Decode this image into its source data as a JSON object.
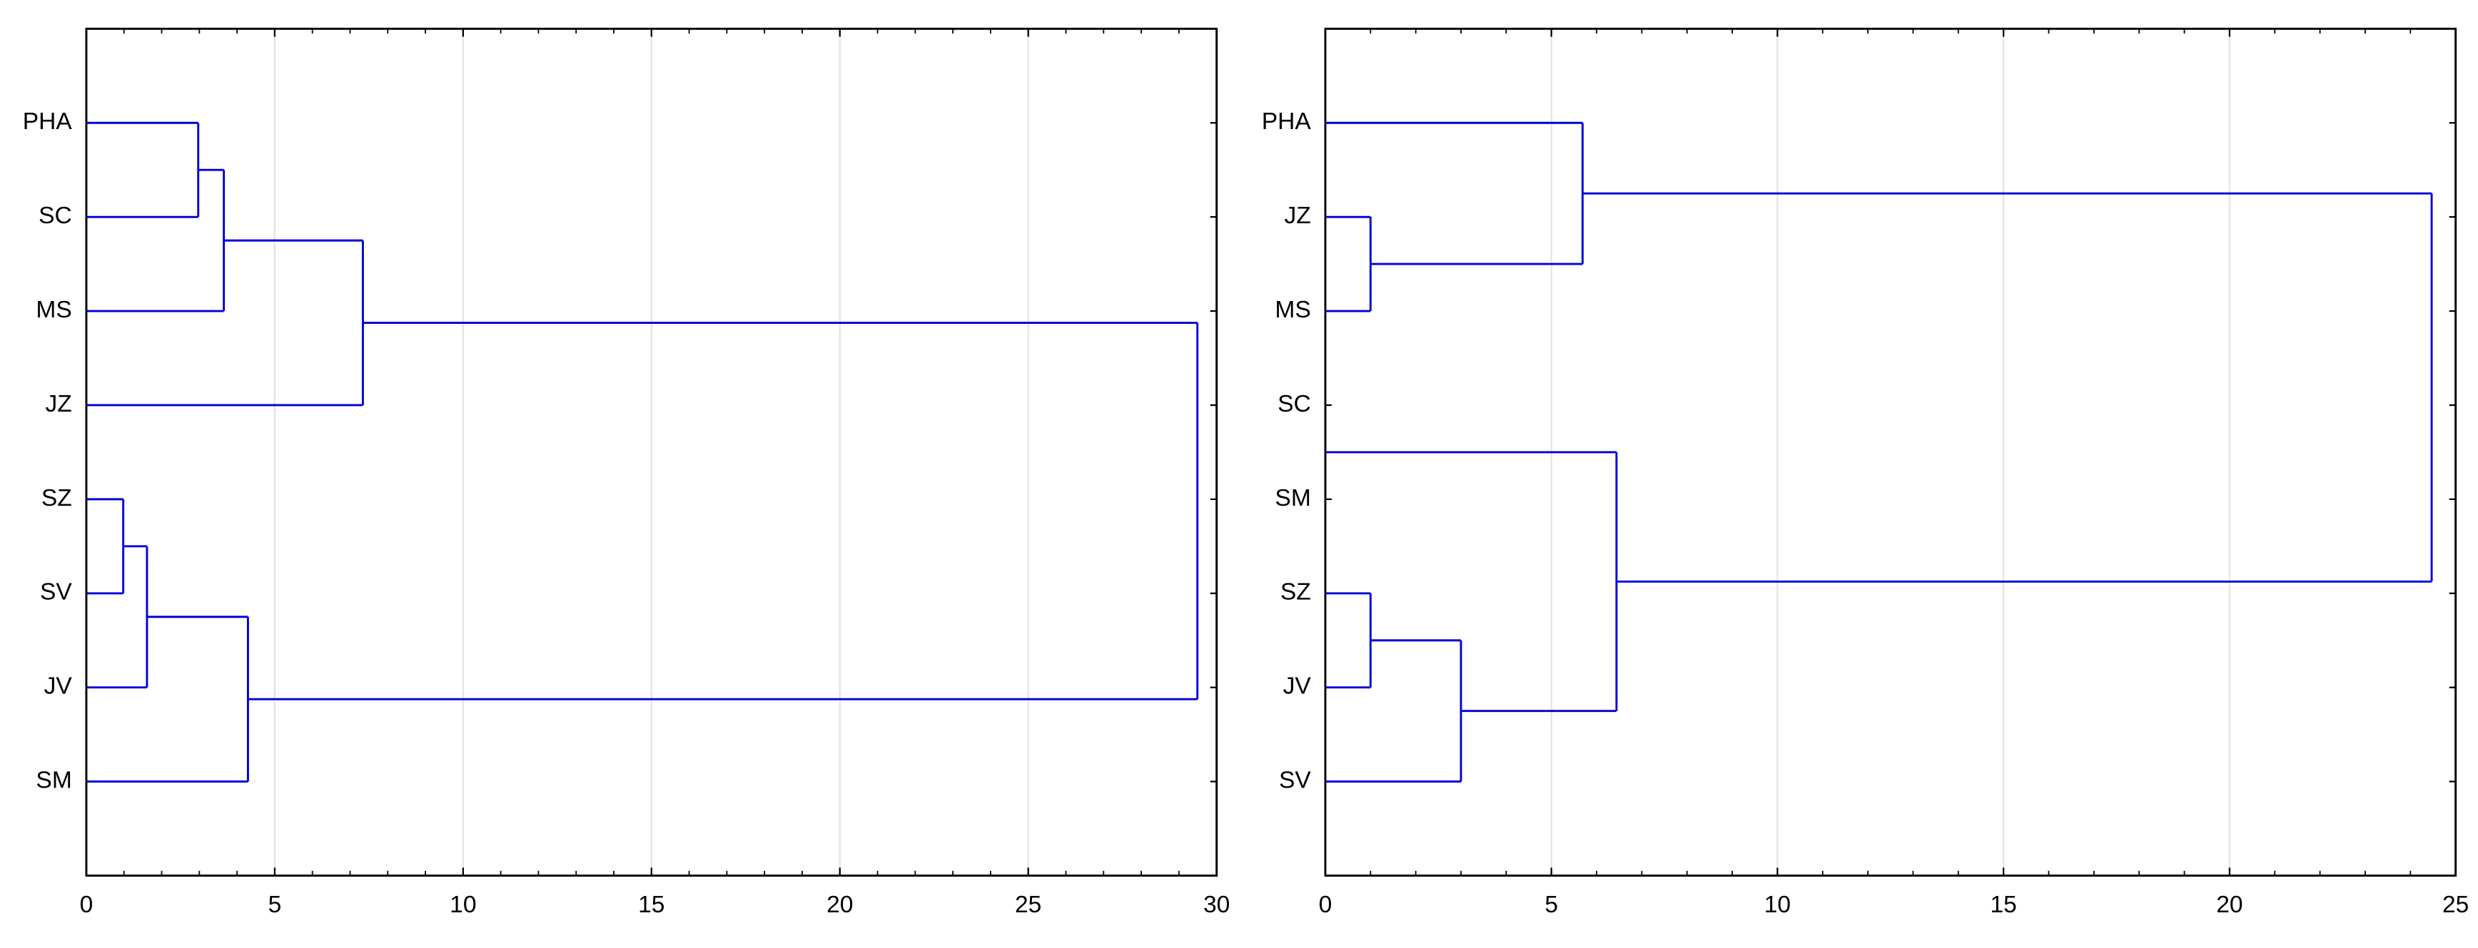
{
  "chart_data": [
    {
      "type": "dendrogram",
      "color": "#0000dd",
      "grid": true,
      "xlim": [
        0,
        30
      ],
      "xticks": [
        0,
        5,
        10,
        15,
        20,
        25,
        30
      ],
      "tree": {
        "height": 29.49,
        "children": [
          {
            "height": 7.34,
            "children": [
              {
                "height": 3.65,
                "children": [
                  {
                    "height": 2.97,
                    "children": [
                      "PHA",
                      "SC"
                    ]
                  },
                  "MS"
                ]
              },
              "JZ"
            ]
          },
          {
            "height": 4.29,
            "children": [
              {
                "height": 1.61,
                "children": [
                  {
                    "height": 0.98,
                    "children": [
                      "SZ",
                      "SV"
                    ]
                  },
                  "JV"
                ]
              },
              "SM"
            ]
          }
        ]
      }
    },
    {
      "type": "dendrogram",
      "color": "#0000dd",
      "grid": true,
      "xlim": [
        0,
        25
      ],
      "xticks": [
        0,
        5,
        10,
        15,
        20,
        25
      ],
      "tree": {
        "height": 24.47,
        "children": [
          {
            "height": 5.69,
            "children": [
              "PHA",
              {
                "height": 1.0,
                "children": [
                  "JZ",
                  "MS"
                ]
              }
            ]
          },
          {
            "height": 6.44,
            "children": [
              {
                "height": 0,
                "children": [
                  "SC",
                  "SM"
                ]
              },
              {
                "height": 3.0,
                "children": [
                  {
                    "height": 1.0,
                    "children": [
                      "SZ",
                      "JV"
                    ]
                  },
                  "SV"
                ]
              }
            ]
          }
        ]
      }
    }
  ]
}
